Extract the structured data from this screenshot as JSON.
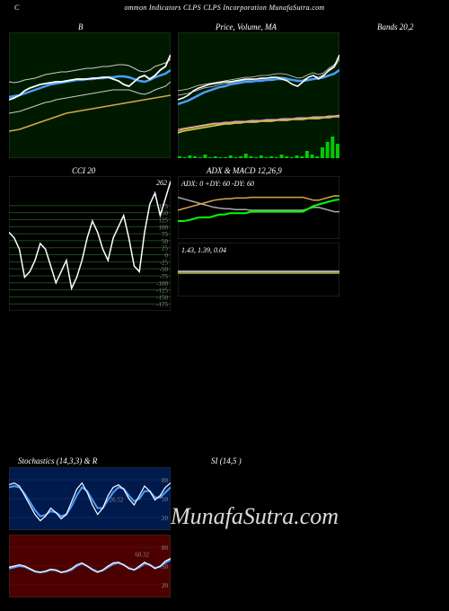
{
  "header": {
    "prefix": "C",
    "title": "ommon Indicators CLPS CLPS Incorporation MunafaSutra.com"
  },
  "titles": {
    "bbands_left": "B",
    "price_ma": "Price, Volume, MA",
    "bands_right": "Bands 20,2",
    "cci": "CCI 20",
    "adx_macd": "ADX  & MACD 12,26,9",
    "stoch": "Stochastics                          (14,3,3) & R",
    "rsi": "SI                      (14,5                          )"
  },
  "watermark": "MunafaSutra.com",
  "charts": {
    "bbands": {
      "bg": "#001a00",
      "width": 180,
      "height": 140,
      "upper": [
        55,
        56,
        55,
        53,
        52,
        51,
        49,
        47,
        46,
        45,
        44,
        44,
        43,
        42,
        41,
        40,
        40,
        39,
        38,
        38,
        37,
        36,
        36,
        37,
        40,
        43,
        44,
        42,
        38,
        36,
        34,
        30
      ],
      "middle": [
        72,
        71,
        70,
        68,
        66,
        64,
        62,
        60,
        58,
        57,
        56,
        55,
        54,
        53,
        53,
        52,
        52,
        51,
        51,
        50,
        50,
        49,
        49,
        50,
        52,
        54,
        55,
        53,
        50,
        48,
        46,
        42
      ],
      "lower": [
        90,
        89,
        88,
        86,
        84,
        82,
        80,
        78,
        77,
        75,
        74,
        73,
        72,
        71,
        70,
        69,
        68,
        67,
        66,
        65,
        64,
        64,
        64,
        64,
        66,
        68,
        69,
        67,
        64,
        62,
        60,
        55
      ],
      "price": [
        75,
        73,
        70,
        65,
        62,
        60,
        58,
        57,
        56,
        55,
        55,
        54,
        53,
        52,
        52,
        52,
        51,
        51,
        50,
        50,
        52,
        54,
        58,
        60,
        55,
        50,
        48,
        52,
        48,
        42,
        38,
        25
      ],
      "orange": [
        110,
        109,
        108,
        106,
        104,
        102,
        100,
        98,
        96,
        94,
        92,
        90,
        89,
        88,
        87,
        86,
        85,
        84,
        83,
        82,
        81,
        80,
        79,
        78,
        77,
        76,
        75,
        74,
        73,
        72,
        71,
        70
      ],
      "colors": {
        "upper": "#ccc",
        "middle": "#4a9eff",
        "lower": "#ccc",
        "price": "#fff",
        "orange": "#d4a84b"
      }
    },
    "price_ma": {
      "bg": "#001a00",
      "width": 180,
      "height": 140,
      "price": [
        75,
        73,
        70,
        65,
        62,
        60,
        58,
        57,
        56,
        55,
        55,
        54,
        53,
        52,
        52,
        52,
        51,
        51,
        50,
        50,
        52,
        54,
        58,
        60,
        55,
        50,
        48,
        52,
        48,
        42,
        38,
        25
      ],
      "ma_blue": [
        80,
        78,
        76,
        73,
        70,
        67,
        65,
        63,
        61,
        60,
        58,
        57,
        56,
        55,
        55,
        54,
        54,
        53,
        53,
        52,
        52,
        52,
        53,
        54,
        54,
        53,
        52,
        51,
        50,
        48,
        46,
        42
      ],
      "line_w1": [
        65,
        64,
        63,
        61,
        59,
        58,
        57,
        56,
        55,
        54,
        53,
        52,
        51,
        50,
        50,
        49,
        48,
        48,
        47,
        46,
        46,
        47,
        49,
        51,
        50,
        47,
        45,
        47,
        45,
        40,
        36,
        28
      ],
      "line_w2": [
        70,
        69,
        68,
        66,
        64,
        62,
        61,
        60,
        58,
        57,
        56,
        55,
        54,
        53,
        53,
        52,
        52,
        51,
        51,
        50,
        50,
        51,
        53,
        55,
        53,
        50,
        48,
        50,
        47,
        43,
        39,
        30
      ],
      "line_orange": [
        110,
        108,
        107,
        106,
        105,
        104,
        103,
        102,
        102,
        101,
        101,
        100,
        100,
        100,
        99,
        99,
        99,
        98,
        98,
        98,
        97,
        97,
        97,
        96,
        96,
        96,
        95,
        95,
        95,
        94,
        94,
        93
      ],
      "line_pink": [
        108,
        107,
        106,
        105,
        104,
        103,
        102,
        101,
        101,
        100,
        100,
        99,
        99,
        99,
        98,
        98,
        98,
        97,
        97,
        97,
        96,
        96,
        96,
        95,
        95,
        95,
        94,
        94,
        94,
        93,
        93,
        92
      ],
      "line_yellow": [
        112,
        110,
        109,
        108,
        107,
        106,
        105,
        104,
        103,
        102,
        102,
        101,
        101,
        100,
        100,
        100,
        99,
        99,
        99,
        98,
        98,
        98,
        97,
        97,
        97,
        96,
        96,
        96,
        95,
        95,
        94,
        94
      ],
      "volume": [
        2,
        1,
        3,
        2,
        1,
        4,
        1,
        2,
        1,
        1,
        3,
        1,
        2,
        5,
        2,
        1,
        3,
        1,
        2,
        1,
        4,
        2,
        1,
        3,
        2,
        8,
        4,
        2,
        12,
        18,
        24,
        16
      ],
      "colors": {
        "price": "#fff",
        "ma_blue": "#4a9eff",
        "w1": "#ddd",
        "w2": "#ddd",
        "orange": "#d4a84b",
        "pink": "#e8a8d8",
        "yellow": "#d4d44b",
        "vol": "#0c0"
      }
    },
    "cci": {
      "bg": "#000",
      "width": 180,
      "height": 150,
      "current": "262",
      "ticks": [
        175,
        150,
        125,
        100,
        75,
        50,
        25,
        0,
        -25,
        -50,
        -75,
        -100,
        -125,
        -150,
        -175
      ],
      "values": [
        80,
        60,
        20,
        -80,
        -60,
        -20,
        40,
        20,
        -40,
        -100,
        -60,
        -20,
        -120,
        -80,
        -20,
        60,
        120,
        80,
        20,
        -20,
        60,
        100,
        140,
        60,
        -40,
        -60,
        80,
        180,
        220,
        140,
        200,
        262
      ],
      "grid_color": "#1a4d1a"
    },
    "adx": {
      "bg": "#000",
      "width": 180,
      "height": 70,
      "label": "ADX: 0   +DY: 60   -DY: 60",
      "adx_line": [
        25,
        25,
        26,
        28,
        30,
        30,
        30,
        32,
        34,
        34,
        36,
        36,
        36,
        36,
        38,
        38,
        38,
        38,
        38,
        38,
        38,
        38,
        38,
        38,
        38,
        42,
        46,
        48,
        50,
        52,
        54,
        55
      ],
      "plus_di": [
        40,
        42,
        44,
        46,
        48,
        50,
        52,
        54,
        55,
        56,
        56,
        57,
        57,
        57,
        58,
        58,
        58,
        58,
        58,
        58,
        58,
        58,
        58,
        58,
        58,
        56,
        54,
        54,
        56,
        58,
        60,
        60
      ],
      "minus_di": [
        58,
        56,
        54,
        52,
        50,
        48,
        46,
        44,
        43,
        42,
        42,
        41,
        41,
        41,
        40,
        40,
        40,
        40,
        40,
        40,
        40,
        40,
        40,
        40,
        40,
        42,
        44,
        44,
        42,
        40,
        38,
        38
      ],
      "colors": {
        "adx": "#0f0",
        "plus": "#d4a84b",
        "minus": "#aaa"
      }
    },
    "macd": {
      "bg": "#000",
      "width": 180,
      "height": 60,
      "label": "1.43,  1.39,  0.04",
      "macd_line": [
        20,
        20,
        20,
        20,
        20,
        20,
        20,
        20,
        20,
        20,
        20,
        20,
        20,
        20,
        20,
        20,
        20,
        20,
        20,
        20,
        20,
        20,
        20,
        20,
        20,
        20,
        20,
        20,
        20,
        20,
        20,
        20
      ],
      "signal": [
        20,
        20,
        20,
        20,
        20,
        20,
        20,
        20,
        20,
        20,
        20,
        20,
        20,
        20,
        20,
        20,
        20,
        20,
        20,
        20,
        20,
        20,
        20,
        20,
        20,
        20,
        20,
        20,
        20,
        20,
        20,
        20
      ],
      "hist": [
        0,
        0,
        0,
        0,
        0,
        0,
        0,
        0,
        0,
        0,
        0,
        0,
        0,
        0,
        0,
        0,
        0,
        0,
        0,
        0,
        0,
        0,
        0,
        0,
        0,
        0,
        0,
        0,
        0,
        0,
        0,
        0
      ],
      "colors": {
        "macd": "#fff",
        "signal": "#d4d44b"
      }
    },
    "stoch": {
      "bg": "#001a4d",
      "width": 180,
      "height": 70,
      "ticks": [
        80,
        50,
        20
      ],
      "k": [
        72,
        75,
        70,
        55,
        40,
        25,
        15,
        22,
        35,
        28,
        18,
        25,
        45,
        65,
        75,
        60,
        40,
        25,
        35,
        55,
        68,
        72,
        65,
        50,
        40,
        55,
        70,
        62,
        48,
        55,
        68,
        75
      ],
      "d": [
        68,
        70,
        68,
        58,
        45,
        32,
        22,
        24,
        30,
        28,
        22,
        25,
        38,
        55,
        68,
        62,
        48,
        35,
        35,
        48,
        60,
        68,
        66,
        55,
        46,
        50,
        62,
        62,
        52,
        52,
        60,
        68
      ],
      "cross_label": "26.52",
      "colors": {
        "k": "#fff",
        "d": "#4a9eff"
      }
    },
    "rsi_w": {
      "bg": "#4d0000",
      "width": 180,
      "height": 70,
      "ticks": [
        80,
        50,
        20
      ],
      "line1": [
        48,
        50,
        52,
        50,
        46,
        42,
        40,
        42,
        45,
        44,
        40,
        42,
        46,
        52,
        55,
        50,
        44,
        40,
        44,
        50,
        55,
        56,
        52,
        46,
        44,
        50,
        56,
        52,
        46,
        50,
        58,
        62
      ],
      "line2": [
        46,
        48,
        50,
        49,
        45,
        41,
        40,
        41,
        44,
        43,
        40,
        41,
        44,
        50,
        54,
        50,
        45,
        41,
        43,
        48,
        53,
        55,
        52,
        47,
        44,
        48,
        54,
        52,
        47,
        49,
        55,
        60
      ],
      "cross_label": "60.32",
      "colors": {
        "l1": "#fff",
        "l2": "#4a9eff"
      }
    }
  }
}
